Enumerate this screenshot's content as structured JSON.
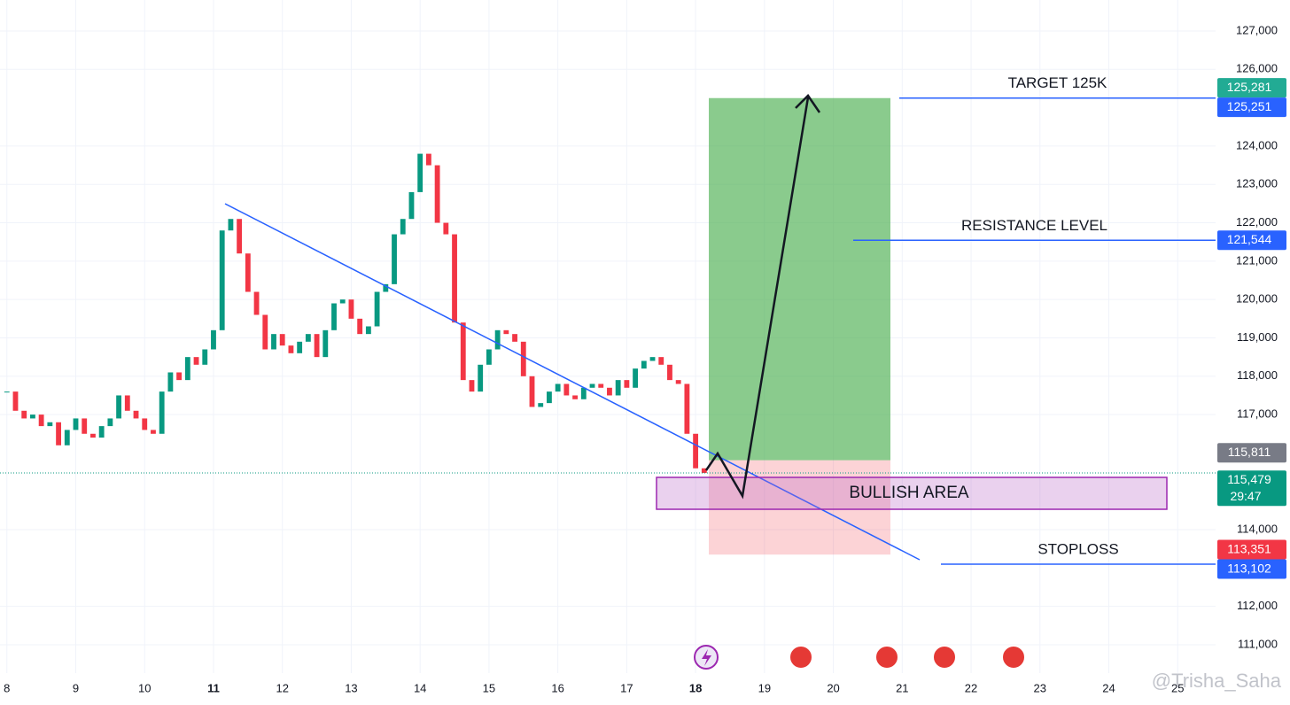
{
  "chart_data": {
    "type": "candlestick",
    "x": [
      8,
      8.125,
      8.25,
      8.375,
      8.5,
      8.625,
      8.75,
      8.875,
      9,
      9.125,
      9.25,
      9.375,
      9.5,
      9.625,
      9.75,
      9.875,
      10,
      10.125,
      10.25,
      10.375,
      10.5,
      10.625,
      10.75,
      10.875,
      11,
      11.125,
      11.25,
      11.375,
      11.5,
      11.625,
      11.75,
      11.875,
      12,
      12.125,
      12.25,
      12.375,
      12.5,
      12.625,
      12.75,
      12.875,
      13,
      13.125,
      13.25,
      13.375,
      13.5,
      13.625,
      13.75,
      13.875,
      14,
      14.125,
      14.25,
      14.375,
      14.5,
      14.625,
      14.75,
      14.875,
      15,
      15.125,
      15.25,
      15.375,
      15.5,
      15.625,
      15.75,
      15.875,
      16,
      16.125,
      16.25,
      16.375,
      16.5,
      16.625,
      16.75,
      16.875,
      17,
      17.125,
      17.25,
      17.375,
      17.5,
      17.625,
      17.75,
      17.875,
      18,
      18.125
    ],
    "values": [
      117600,
      117100,
      116900,
      117000,
      116700,
      116800,
      116200,
      116600,
      116900,
      116500,
      116400,
      116700,
      116900,
      117500,
      117100,
      116900,
      116600,
      116500,
      117600,
      118100,
      117900,
      118500,
      118300,
      118700,
      119200,
      121800,
      122100,
      121200,
      120200,
      119600,
      118700,
      119100,
      118800,
      118600,
      118900,
      119100,
      118500,
      119200,
      119900,
      120000,
      119500,
      119100,
      119300,
      120200,
      120400,
      121700,
      122100,
      122800,
      123800,
      123500,
      122000,
      121700,
      119400,
      117900,
      117600,
      118300,
      118700,
      119200,
      119100,
      118900,
      118000,
      117200,
      117300,
      117600,
      117800,
      117500,
      117400,
      117700,
      117800,
      117700,
      117500,
      117900,
      117700,
      118200,
      118400,
      118500,
      118300,
      117900,
      117800,
      116500,
      115600,
      115479
    ],
    "up_color": "#089981",
    "down_color": "#f23645",
    "xlim": [
      7.9,
      25.55
    ],
    "ylim": [
      110030,
      127808
    ],
    "xticks": [
      8,
      9,
      10,
      11,
      12,
      13,
      14,
      15,
      16,
      17,
      18,
      19,
      20,
      21,
      22,
      23,
      24,
      25
    ],
    "yticks": [
      {
        "value": 111000,
        "label": "111,000"
      },
      {
        "value": 112000,
        "label": "112,000"
      },
      {
        "value": 114000,
        "label": "114,000"
      },
      {
        "value": 117000,
        "label": "117,000"
      },
      {
        "value": 118000,
        "label": "118,000"
      },
      {
        "value": 119000,
        "label": "119,000"
      },
      {
        "value": 120000,
        "label": "120,000"
      },
      {
        "value": 121000,
        "label": "121,000"
      },
      {
        "value": 122000,
        "label": "122,000"
      },
      {
        "value": 123000,
        "label": "123,000"
      },
      {
        "value": 124000,
        "label": "124,000"
      },
      {
        "value": 126000,
        "label": "126,000"
      },
      {
        "value": 127000,
        "label": "127,000"
      }
    ],
    "grid": true,
    "price_labels": [
      {
        "value": 125281,
        "label": "125,281",
        "color": "#22ab94"
      },
      {
        "value": 125251,
        "label": "125,251",
        "color": "#2962ff",
        "annotation": "TARGET 125K"
      },
      {
        "value": 121544,
        "label": "121,544",
        "color": "#2962ff",
        "annotation": "RESISTANCE LEVEL"
      },
      {
        "value": 115811,
        "label": "115,811",
        "color": "#787b86"
      },
      {
        "value": 115479,
        "label": "115,479",
        "color": "#089981",
        "countdown": "29:47"
      },
      {
        "value": 113351,
        "label": "113,351",
        "color": "#f23645"
      },
      {
        "value": 113102,
        "label": "113,102",
        "color": "#2962ff",
        "annotation": "STOPLOSS"
      }
    ],
    "zone_label": "BULLISH AREA",
    "watermark": "@Trisha_Saha"
  }
}
